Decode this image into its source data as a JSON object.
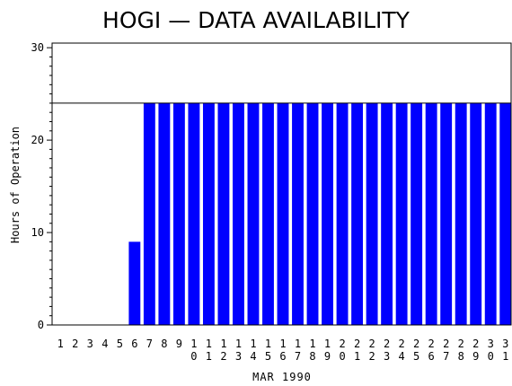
{
  "chart_data": {
    "type": "bar",
    "title": "HOGI — DATA AVAILABILITY",
    "xlabel": "MAR 1990",
    "ylabel": "Hours of Operation",
    "ylim": [
      0,
      30.5
    ],
    "yticks": [
      0,
      10,
      20,
      30
    ],
    "reference_line": 24,
    "bar_color": "#0000ff",
    "categories": [
      "1",
      "2",
      "3",
      "4",
      "5",
      "6",
      "7",
      "8",
      "9",
      "10",
      "11",
      "12",
      "13",
      "14",
      "15",
      "16",
      "17",
      "18",
      "19",
      "20",
      "21",
      "22",
      "23",
      "24",
      "25",
      "26",
      "27",
      "28",
      "29",
      "30",
      "31"
    ],
    "values": [
      0,
      0,
      0,
      0,
      0,
      9,
      24,
      24,
      24,
      24,
      24,
      24,
      24,
      24,
      24,
      24,
      24,
      24,
      24,
      24,
      24,
      24,
      24,
      24,
      24,
      24,
      24,
      24,
      24,
      24,
      24
    ]
  }
}
